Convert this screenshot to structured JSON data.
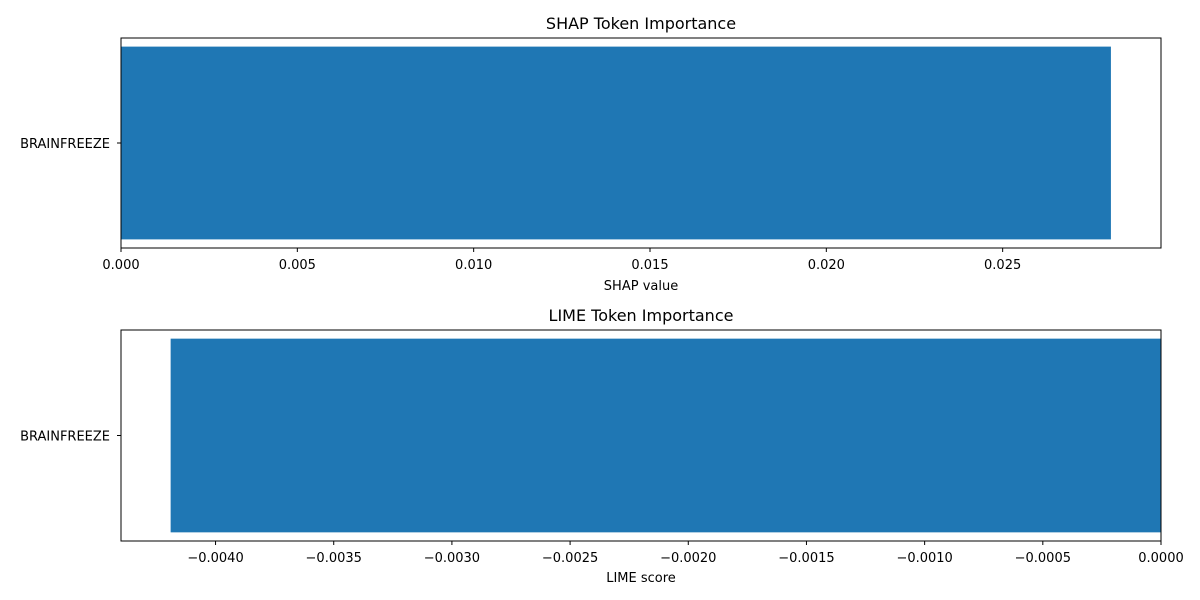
{
  "chart_data": [
    {
      "type": "bar",
      "orientation": "horizontal",
      "title": "SHAP Token Importance",
      "xlabel": "SHAP value",
      "ylabel": "",
      "categories": [
        "BRAINFREEZE"
      ],
      "values": [
        0.02807
      ],
      "xlim": [
        0,
        0.02949
      ],
      "xticks": [
        0.0,
        0.005,
        0.01,
        0.015,
        0.02,
        0.025
      ],
      "xtick_labels": [
        "0.000",
        "0.005",
        "0.010",
        "0.015",
        "0.020",
        "0.025"
      ],
      "grid": false,
      "bar_color": "#1f77b4"
    },
    {
      "type": "bar",
      "orientation": "horizontal",
      "title": "LIME Token Importance",
      "xlabel": "LIME score",
      "ylabel": "",
      "categories": [
        "BRAINFREEZE"
      ],
      "values": [
        -0.00419
      ],
      "xlim": [
        -0.0044,
        0
      ],
      "xticks": [
        -0.004,
        -0.0035,
        -0.003,
        -0.0025,
        -0.002,
        -0.0015,
        -0.001,
        -0.0005,
        0.0
      ],
      "xtick_labels": [
        "−0.0040",
        "−0.0035",
        "−0.0030",
        "−0.0025",
        "−0.0020",
        "−0.0015",
        "−0.0010",
        "−0.0005",
        "0.0000"
      ],
      "grid": false,
      "bar_color": "#1f77b4"
    }
  ]
}
